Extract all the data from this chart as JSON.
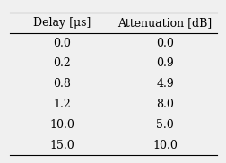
{
  "col1_header": "Delay [μs]",
  "col2_header": "Attenuation [dB]",
  "delays": [
    "0.0",
    "0.2",
    "0.8",
    "1.2",
    "10.0",
    "15.0"
  ],
  "attenuations": [
    "0.0",
    "0.9",
    "4.9",
    "8.0",
    "5.0",
    "10.0"
  ],
  "background_color": "#f0f0f0",
  "text_color": "#000000",
  "font_size": 9,
  "header_font_size": 9
}
